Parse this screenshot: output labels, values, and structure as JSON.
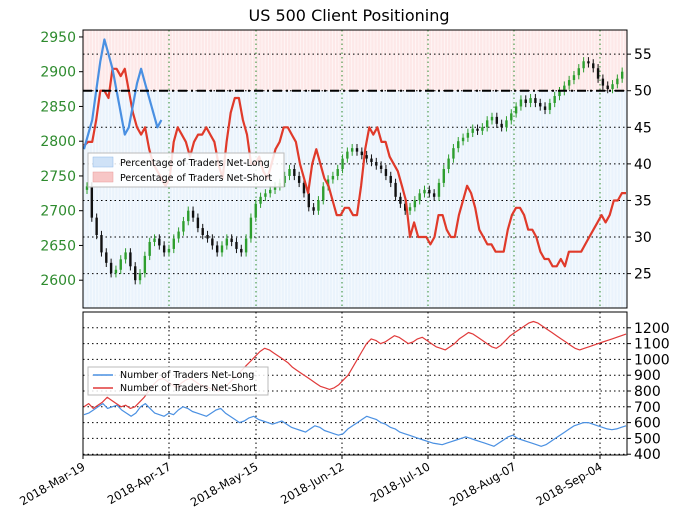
{
  "chart_data": [
    {
      "type": "candlestick",
      "title": "US 500 Client Positioning",
      "y_left": {
        "ylim": [
          2560,
          2960
        ],
        "ticks": [
          "2600",
          "2650",
          "2700",
          "2750",
          "2800",
          "2850",
          "2900",
          "2950"
        ]
      },
      "y_right": {
        "ylim": [
          20.3,
          58.3
        ],
        "ticks": [
          "25",
          "30",
          "35",
          "40",
          "45",
          "50",
          "55"
        ],
        "reference_line": 50
      },
      "legend": {
        "placement": "left",
        "entries": [
          "Percentage of Traders Net-Long",
          "Percentage of Traders Net-Short"
        ]
      },
      "price_close": [
        2735,
        2690,
        2665,
        2640,
        2625,
        2610,
        2615,
        2630,
        2640,
        2620,
        2600,
        2610,
        2635,
        2655,
        2660,
        2650,
        2640,
        2645,
        2660,
        2670,
        2685,
        2700,
        2690,
        2675,
        2665,
        2660,
        2650,
        2640,
        2650,
        2660,
        2655,
        2645,
        2640,
        2660,
        2690,
        2710,
        2720,
        2725,
        2730,
        2735,
        2740,
        2750,
        2760,
        2750,
        2740,
        2725,
        2705,
        2700,
        2715,
        2735,
        2745,
        2750,
        2760,
        2775,
        2785,
        2790,
        2785,
        2780,
        2775,
        2770,
        2765,
        2760,
        2750,
        2740,
        2720,
        2710,
        2700,
        2705,
        2715,
        2725,
        2730,
        2725,
        2720,
        2740,
        2760,
        2775,
        2790,
        2800,
        2805,
        2812,
        2818,
        2815,
        2820,
        2830,
        2835,
        2825,
        2820,
        2830,
        2840,
        2850,
        2860,
        2855,
        2862,
        2855,
        2850,
        2845,
        2855,
        2865,
        2872,
        2880,
        2888,
        2895,
        2905,
        2915,
        2912,
        2905,
        2890,
        2880,
        2875,
        2882,
        2890,
        2900
      ],
      "pct_net_long_start": [
        42,
        44,
        46,
        50,
        54,
        57,
        55,
        53,
        50,
        47,
        44,
        45,
        48,
        51,
        53,
        51,
        49,
        47,
        45,
        46
      ],
      "pct_net_short": [
        42.5,
        43,
        43,
        46,
        50,
        50,
        49,
        53,
        53,
        52,
        53,
        50,
        47,
        45,
        44,
        45,
        42,
        40,
        39,
        38,
        37,
        38,
        43,
        45,
        44,
        43,
        41,
        43,
        44,
        44,
        45,
        44,
        43,
        40,
        38,
        43,
        47,
        49,
        49,
        46,
        44,
        40,
        40,
        41,
        39,
        38,
        40,
        42,
        43,
        45,
        45,
        44,
        43,
        40,
        38,
        36,
        40,
        42,
        40,
        38,
        37,
        35,
        33,
        33,
        34,
        34,
        33,
        33,
        37,
        42,
        45,
        44,
        45,
        43,
        43,
        41,
        40,
        39,
        37,
        35,
        30,
        32,
        30,
        30,
        30,
        29,
        30,
        33,
        33,
        31,
        30,
        30,
        33,
        35,
        37,
        36,
        34,
        31,
        30,
        29,
        29,
        28,
        28,
        28,
        31,
        33,
        34,
        34,
        33,
        31,
        31,
        30,
        28,
        27,
        27,
        26,
        26,
        27,
        26,
        28,
        28,
        28,
        28,
        29,
        30,
        31,
        32,
        33,
        32,
        33,
        35,
        35,
        36,
        36
      ]
    },
    {
      "type": "line",
      "ylim": [
        395,
        1300
      ],
      "y_ticks": [
        "400",
        "500",
        "600",
        "700",
        "800",
        "900",
        "1000",
        "1100",
        "1200"
      ],
      "legend": {
        "placement": "left",
        "entries": [
          "Number of Traders Net-Long",
          "Number of Traders Net-Short"
        ]
      },
      "x_ticks": [
        "2018-Mar-19",
        "2018-Apr-17",
        "2018-May-15",
        "2018-Jun-12",
        "2018-Jul-10",
        "2018-Aug-07",
        "2018-Sep-04"
      ],
      "series": [
        {
          "name": "Number of Traders Net-Long",
          "color": "#4a90e2",
          "values": [
            650,
            660,
            680,
            700,
            720,
            690,
            700,
            710,
            680,
            660,
            640,
            660,
            700,
            720,
            690,
            660,
            650,
            640,
            660,
            650,
            680,
            700,
            690,
            670,
            660,
            650,
            640,
            660,
            680,
            690,
            660,
            640,
            620,
            600,
            610,
            630,
            640,
            620,
            610,
            600,
            590,
            600,
            610,
            590,
            570,
            560,
            550,
            540,
            560,
            580,
            570,
            550,
            540,
            530,
            520,
            530,
            560,
            580,
            600,
            620,
            640,
            630,
            620,
            600,
            590,
            570,
            560,
            540,
            530,
            520,
            510,
            500,
            490,
            480,
            470,
            465,
            460,
            470,
            480,
            490,
            500,
            510,
            500,
            490,
            480,
            470,
            460,
            450,
            470,
            490,
            510,
            520,
            500,
            490,
            480,
            470,
            460,
            450,
            460,
            480,
            500,
            520,
            540,
            560,
            580,
            590,
            600,
            600,
            590,
            580,
            570,
            560,
            555,
            560,
            570,
            580
          ]
        },
        {
          "name": "Number of Traders Net-Short",
          "color": "#e03a3a",
          "values": [
            700,
            720,
            690,
            710,
            730,
            760,
            740,
            720,
            700,
            710,
            690,
            700,
            730,
            760,
            800,
            840,
            870,
            880,
            860,
            840,
            820,
            850,
            870,
            880,
            860,
            840,
            830,
            820,
            810,
            800,
            820,
            840,
            870,
            900,
            930,
            960,
            990,
            1020,
            1050,
            1070,
            1060,
            1040,
            1020,
            1000,
            980,
            950,
            930,
            910,
            890,
            870,
            850,
            830,
            820,
            810,
            820,
            840,
            870,
            900,
            950,
            1000,
            1050,
            1100,
            1130,
            1120,
            1100,
            1110,
            1130,
            1150,
            1140,
            1120,
            1100,
            1110,
            1130,
            1140,
            1120,
            1100,
            1080,
            1070,
            1060,
            1080,
            1100,
            1130,
            1150,
            1170,
            1160,
            1140,
            1120,
            1100,
            1080,
            1070,
            1090,
            1120,
            1150,
            1170,
            1190,
            1210,
            1230,
            1240,
            1230,
            1210,
            1190,
            1170,
            1150,
            1130,
            1110,
            1090,
            1070,
            1060,
            1070,
            1080,
            1090,
            1100,
            1110,
            1120,
            1130,
            1140,
            1150,
            1160
          ]
        }
      ]
    }
  ]
}
